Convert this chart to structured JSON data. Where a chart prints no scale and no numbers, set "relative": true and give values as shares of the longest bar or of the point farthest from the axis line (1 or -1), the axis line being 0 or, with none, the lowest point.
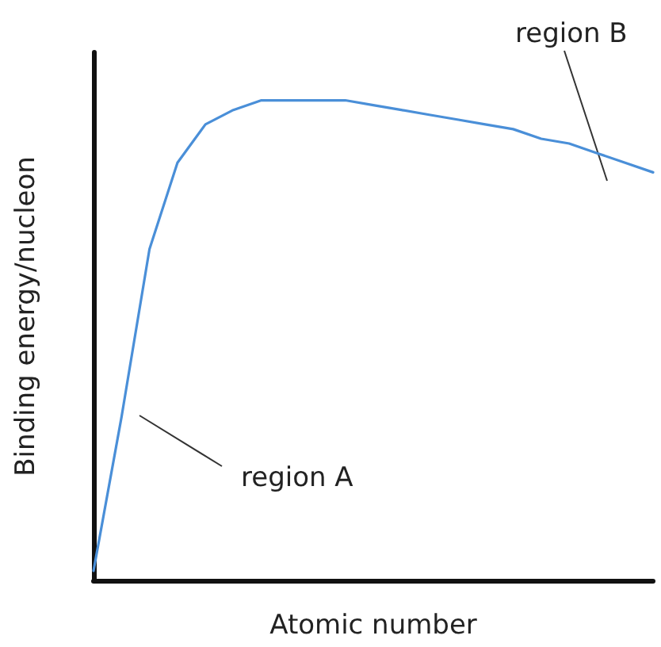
{
  "chart_data": {
    "type": "line",
    "relative": true,
    "xlabel": "Atomic number",
    "ylabel": "Binding energy/nucleon",
    "categories": [
      null,
      null,
      null,
      null,
      null,
      null,
      null,
      null,
      null,
      null,
      null,
      null,
      null,
      null,
      null,
      null,
      null,
      null,
      null,
      null,
      null
    ],
    "series": [
      {
        "color": "#4a8fd8",
        "values": [
          0.02,
          0.34,
          0.69,
          0.87,
          0.95,
          0.98,
          1.0,
          1.0,
          1.0,
          1.0,
          0.99,
          0.98,
          0.97,
          0.96,
          0.95,
          0.94,
          0.92,
          0.91,
          0.89,
          0.87,
          0.85
        ]
      }
    ],
    "annotations": [
      "region A",
      "region B"
    ],
    "grid": false,
    "marker": "none",
    "line_style": "solid"
  }
}
